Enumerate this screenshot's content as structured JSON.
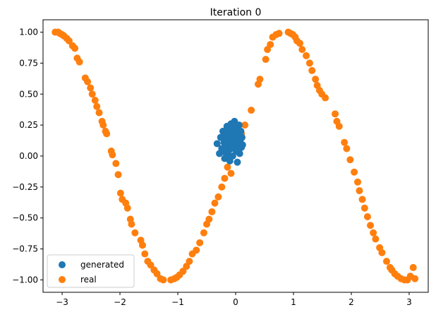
{
  "chart_data": {
    "type": "scatter",
    "title": "Iteration 0",
    "xlabel": "",
    "ylabel": "",
    "xlim": [
      -3.33,
      3.33
    ],
    "ylim": [
      -1.1,
      1.1
    ],
    "xticks": [
      -3,
      -2,
      -1,
      0,
      1,
      2,
      3
    ],
    "yticks": [
      -1.0,
      -0.75,
      -0.5,
      -0.25,
      0.0,
      0.25,
      0.5,
      0.75,
      1.0
    ],
    "xtick_labels": [
      "−3",
      "−2",
      "−1",
      "0",
      "1",
      "2",
      "3"
    ],
    "ytick_labels": [
      "−1.00",
      "−0.75",
      "−0.50",
      "−0.25",
      "0.00",
      "0.25",
      "0.50",
      "0.75",
      "1.00"
    ],
    "legend_position": "lower-left",
    "series": [
      {
        "name": "generated",
        "color": "#1f77b4",
        "points": [
          [
            -0.32,
            0.1
          ],
          [
            -0.28,
            0.02
          ],
          [
            -0.26,
            0.15
          ],
          [
            -0.24,
            0.06
          ],
          [
            -0.22,
            0.2
          ],
          [
            -0.2,
            0.11
          ],
          [
            -0.19,
            -0.02
          ],
          [
            -0.17,
            0.18
          ],
          [
            -0.16,
            0.08
          ],
          [
            -0.15,
            0.24
          ],
          [
            -0.14,
            0.01
          ],
          [
            -0.13,
            0.13
          ],
          [
            -0.12,
            0.21
          ],
          [
            -0.11,
            0.05
          ],
          [
            -0.1,
            -0.04
          ],
          [
            -0.09,
            0.17
          ],
          [
            -0.08,
            0.26
          ],
          [
            -0.07,
            0.09
          ],
          [
            -0.06,
            0.14
          ],
          [
            -0.05,
            0.0
          ],
          [
            -0.04,
            0.22
          ],
          [
            -0.03,
            0.07
          ],
          [
            -0.02,
            0.28
          ],
          [
            -0.01,
            0.12
          ],
          [
            0.0,
            0.19
          ],
          [
            0.01,
            0.04
          ],
          [
            0.02,
            0.23
          ],
          [
            0.03,
            -0.05
          ],
          [
            0.04,
            0.16
          ],
          [
            0.05,
            0.1
          ],
          [
            0.06,
            0.25
          ],
          [
            0.07,
            0.02
          ],
          [
            0.08,
            0.13
          ],
          [
            0.09,
            0.2
          ],
          [
            0.1,
            0.07
          ],
          [
            0.11,
            0.15
          ],
          [
            0.12,
            0.09
          ],
          [
            -0.18,
            0.03
          ],
          [
            -0.21,
            0.16
          ],
          [
            -0.05,
            0.11
          ],
          [
            0.0,
            0.08
          ],
          [
            -0.12,
            0.1
          ],
          [
            0.04,
            0.05
          ],
          [
            -0.08,
            0.06
          ],
          [
            -0.02,
            0.15
          ],
          [
            0.05,
            0.18
          ],
          [
            -0.15,
            0.12
          ],
          [
            0.02,
            0.11
          ]
        ]
      },
      {
        "name": "real",
        "color": "#ff7f0e",
        "x": [
          -3.12,
          -3.07,
          -3.04,
          -3.0,
          -2.97,
          -2.92,
          -2.88,
          -2.82,
          -2.78,
          -2.74,
          -2.7,
          -2.6,
          -2.56,
          -2.51,
          -2.48,
          -2.43,
          -2.4,
          -2.36,
          -2.31,
          -2.29,
          -2.25,
          -2.23,
          -2.15,
          -2.13,
          -2.07,
          -2.03,
          -1.99,
          -1.96,
          -1.9,
          -1.87,
          -1.82,
          -1.8,
          -1.74,
          -1.64,
          -1.61,
          -1.57,
          -1.52,
          -1.47,
          -1.41,
          -1.36,
          -1.3,
          -1.25,
          -1.12,
          -1.06,
          -1.02,
          -0.97,
          -0.91,
          -0.85,
          -0.8,
          -0.75,
          -0.68,
          -0.62,
          -0.55,
          -0.5,
          -0.46,
          -0.41,
          -0.36,
          -0.3,
          -0.24,
          -0.19,
          -0.14,
          -0.08,
          0.03,
          0.1,
          0.16,
          0.27,
          0.39,
          0.42,
          0.52,
          0.55,
          0.6,
          0.64,
          0.7,
          0.75,
          0.91,
          0.95,
          0.99,
          1.03,
          1.06,
          1.11,
          1.15,
          1.22,
          1.28,
          1.32,
          1.38,
          1.41,
          1.45,
          1.49,
          1.55,
          1.72,
          1.75,
          1.79,
          1.88,
          1.92,
          1.98,
          2.05,
          2.11,
          2.14,
          2.19,
          2.23,
          2.28,
          2.33,
          2.38,
          2.42,
          2.49,
          2.53,
          2.61,
          2.67,
          2.7,
          2.75,
          2.8,
          2.86,
          2.92,
          2.97,
          3.02,
          3.07,
          3.1,
          -0.09
        ],
        "y": [
          1.0,
          1.0,
          0.99,
          0.98,
          0.97,
          0.95,
          0.93,
          0.89,
          0.87,
          0.79,
          0.76,
          0.63,
          0.6,
          0.55,
          0.5,
          0.45,
          0.4,
          0.35,
          0.28,
          0.25,
          0.2,
          0.18,
          0.04,
          0.01,
          -0.06,
          -0.15,
          -0.3,
          -0.35,
          -0.38,
          -0.42,
          -0.51,
          -0.55,
          -0.62,
          -0.68,
          -0.72,
          -0.79,
          -0.85,
          -0.88,
          -0.92,
          -0.95,
          -0.99,
          -1.0,
          -1.0,
          -0.99,
          -0.98,
          -0.96,
          -0.93,
          -0.89,
          -0.85,
          -0.79,
          -0.76,
          -0.7,
          -0.62,
          -0.55,
          -0.51,
          -0.45,
          -0.38,
          -0.33,
          -0.25,
          -0.18,
          -0.09,
          -0.14,
          0.08,
          0.18,
          0.25,
          0.37,
          0.58,
          0.62,
          0.78,
          0.86,
          0.9,
          0.96,
          0.98,
          0.99,
          1.0,
          0.99,
          0.98,
          0.96,
          0.93,
          0.91,
          0.86,
          0.81,
          0.75,
          0.69,
          0.62,
          0.57,
          0.53,
          0.5,
          0.47,
          0.34,
          0.28,
          0.24,
          0.11,
          0.06,
          -0.03,
          -0.13,
          -0.21,
          -0.28,
          -0.35,
          -0.42,
          -0.49,
          -0.56,
          -0.62,
          -0.67,
          -0.74,
          -0.78,
          -0.85,
          -0.9,
          -0.92,
          -0.95,
          -0.97,
          -0.99,
          -1.0,
          -1.0,
          -0.97,
          -0.9,
          -0.99,
          0.22
        ]
      }
    ]
  }
}
